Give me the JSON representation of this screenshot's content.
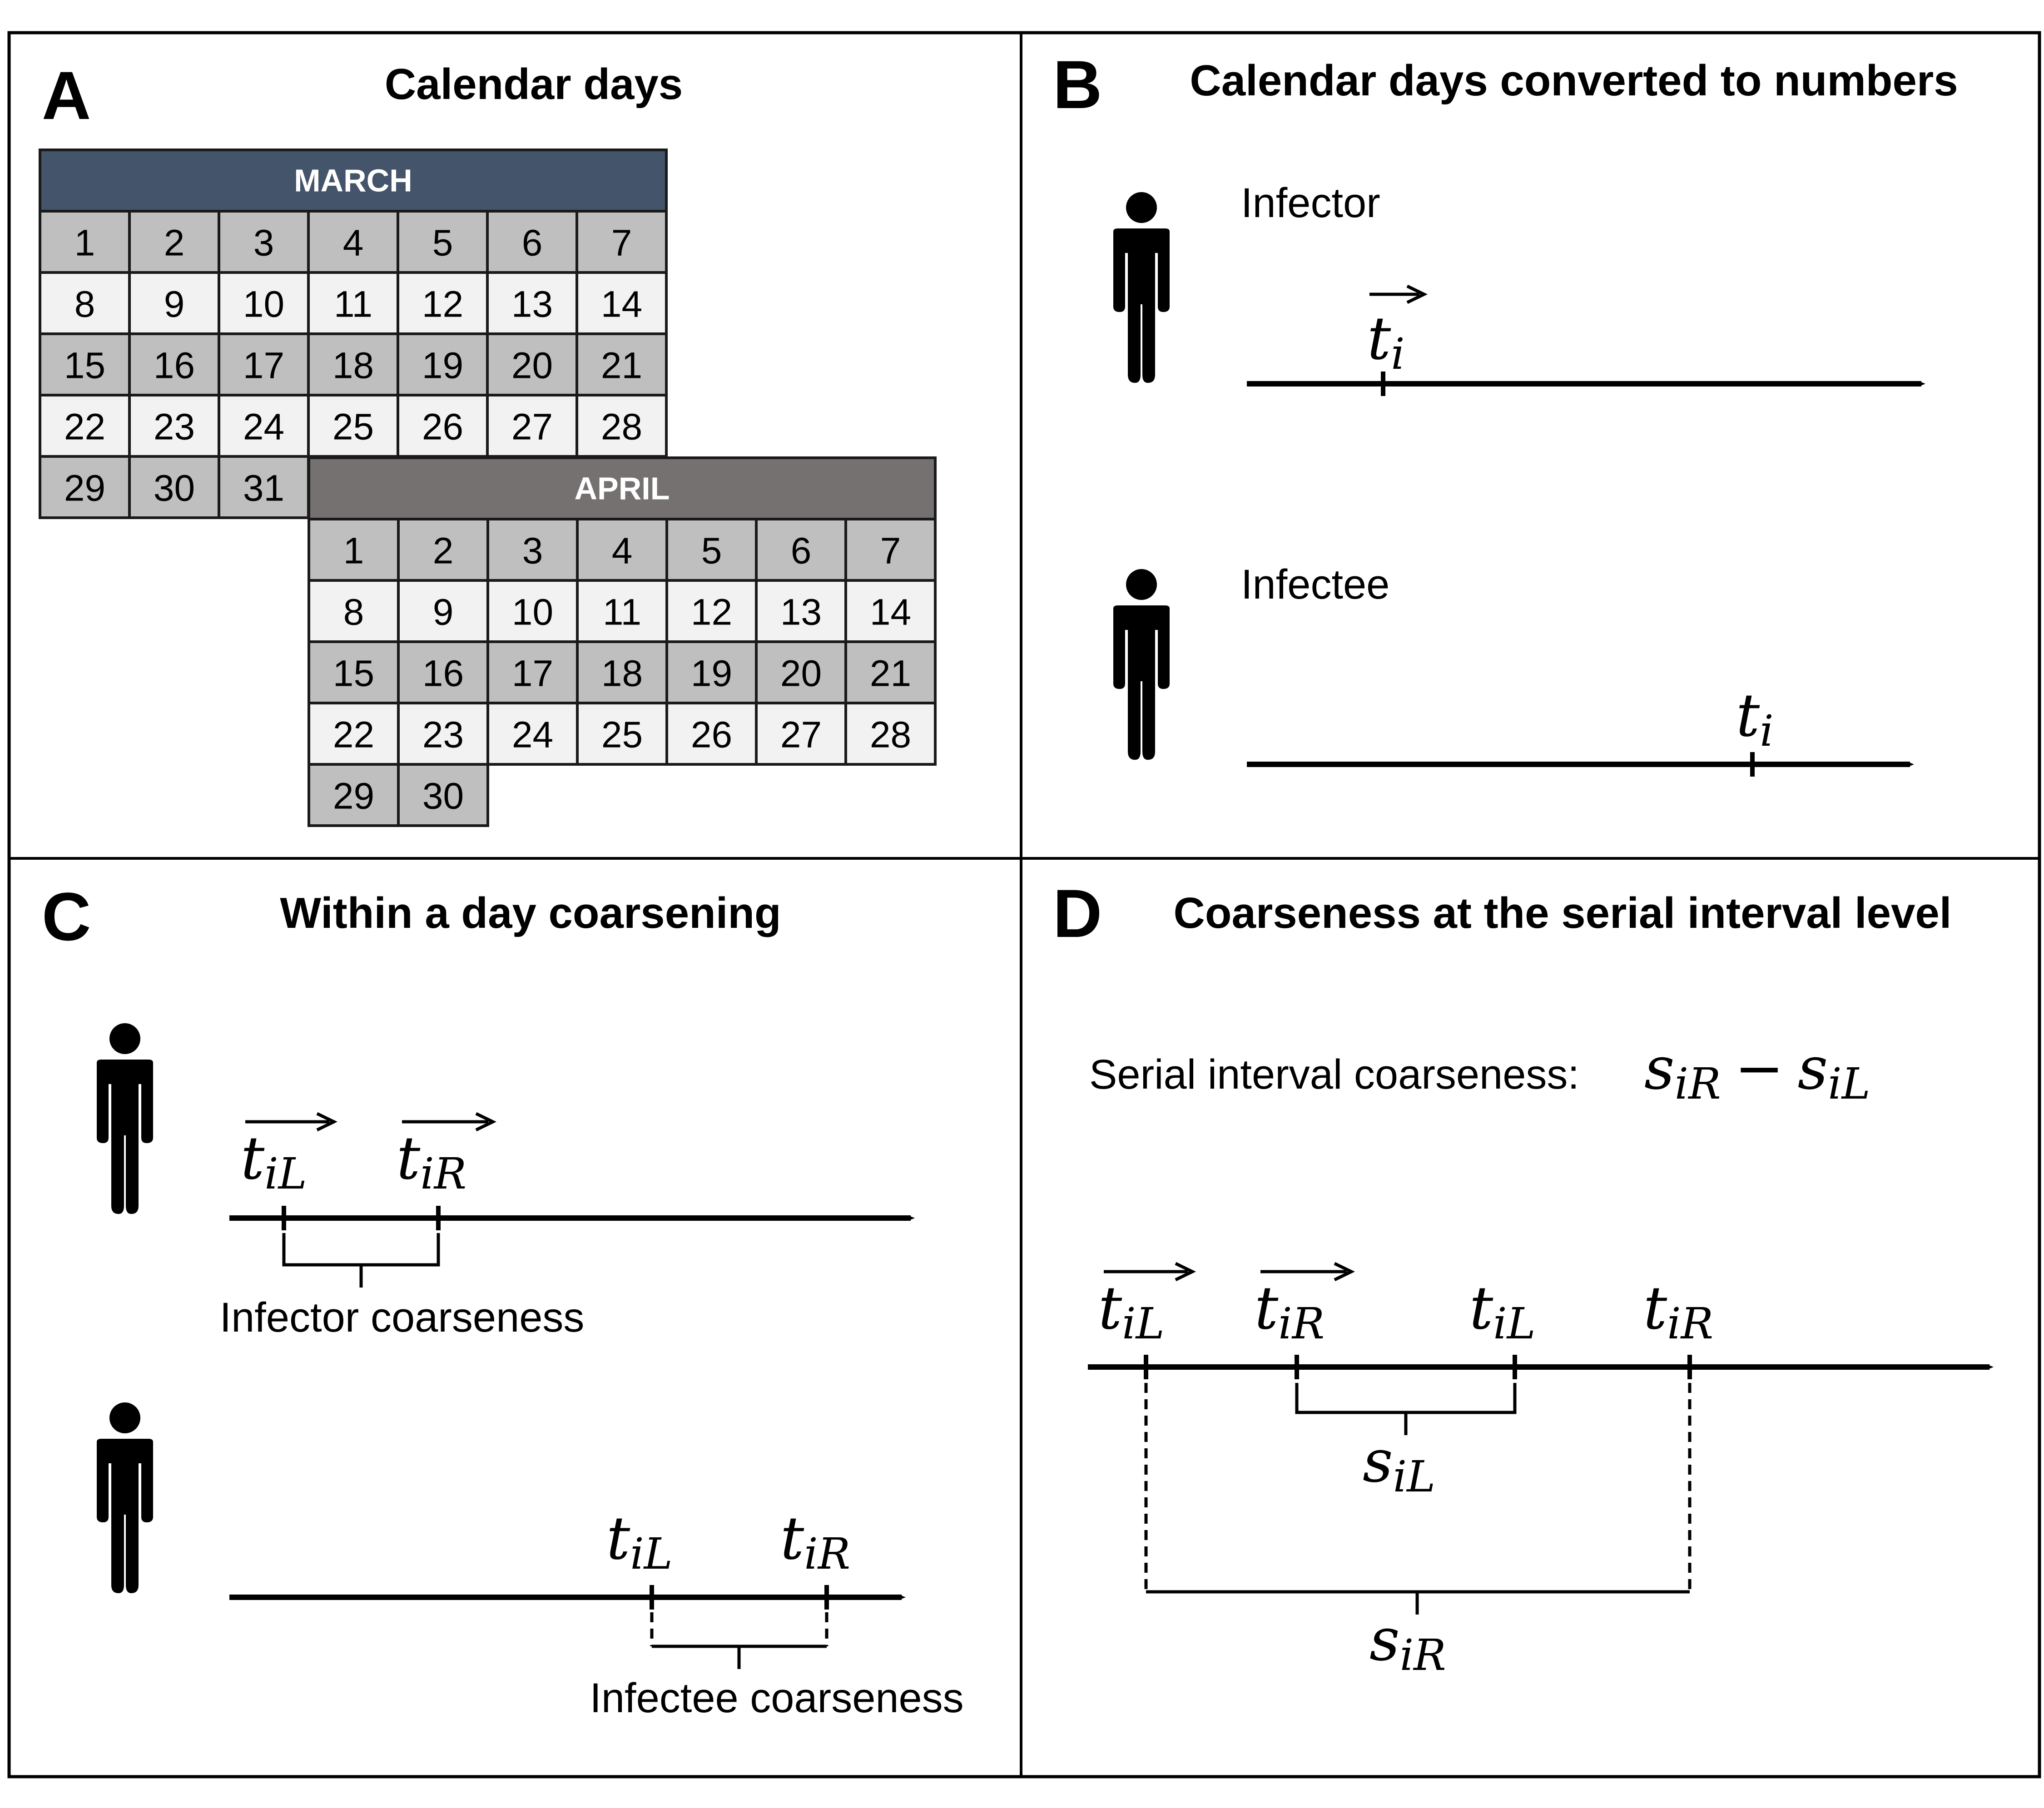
{
  "panels": {
    "A": {
      "letter": "A",
      "title": "Calendar days",
      "march": {
        "name": "MARCH",
        "header_color": "#44546a",
        "days": 31,
        "columns": 7,
        "dark_rows": [
          0,
          2,
          4
        ]
      },
      "april": {
        "name": "APRIL",
        "header_color": "#767171",
        "days": 30,
        "columns": 7,
        "dark_rows": [
          0,
          2,
          4
        ]
      },
      "cell_dark": "#bfbfbf",
      "cell_light": "#f2f2f2"
    },
    "B": {
      "letter": "B",
      "title": "Calendar days converted to numbers",
      "infector": {
        "label": "Infector",
        "tick": {
          "base": "t",
          "sub": "i",
          "arrow": true
        }
      },
      "infectee": {
        "label": "Infectee",
        "tick": {
          "base": "t",
          "sub": "i",
          "arrow": false
        }
      }
    },
    "C": {
      "letter": "C",
      "title": "Within a day coarsening",
      "infector": {
        "ticks": [
          {
            "base": "t",
            "sub": "iL",
            "arrow": true
          },
          {
            "base": "t",
            "sub": "iR",
            "arrow": true
          }
        ],
        "brace_label": "Infector coarseness"
      },
      "infectee": {
        "ticks": [
          {
            "base": "t",
            "sub": "iL",
            "arrow": false
          },
          {
            "base": "t",
            "sub": "iR",
            "arrow": false
          }
        ],
        "brace_label": "Infectee coarseness"
      }
    },
    "D": {
      "letter": "D",
      "title": "Coarseness at the serial interval level",
      "formula_label": "Serial interval coarseness:",
      "formula": {
        "a_base": "s",
        "a_sub": "iR",
        "op": "−",
        "b_base": "s",
        "b_sub": "iL"
      },
      "ticks": [
        {
          "base": "t",
          "sub": "iL",
          "arrow": true
        },
        {
          "base": "t",
          "sub": "iR",
          "arrow": true
        },
        {
          "base": "t",
          "sub": "iL",
          "arrow": false
        },
        {
          "base": "t",
          "sub": "iR",
          "arrow": false
        }
      ],
      "inner_brace": {
        "base": "s",
        "sub": "iL"
      },
      "outer_brace": {
        "base": "s",
        "sub": "iR"
      }
    }
  }
}
